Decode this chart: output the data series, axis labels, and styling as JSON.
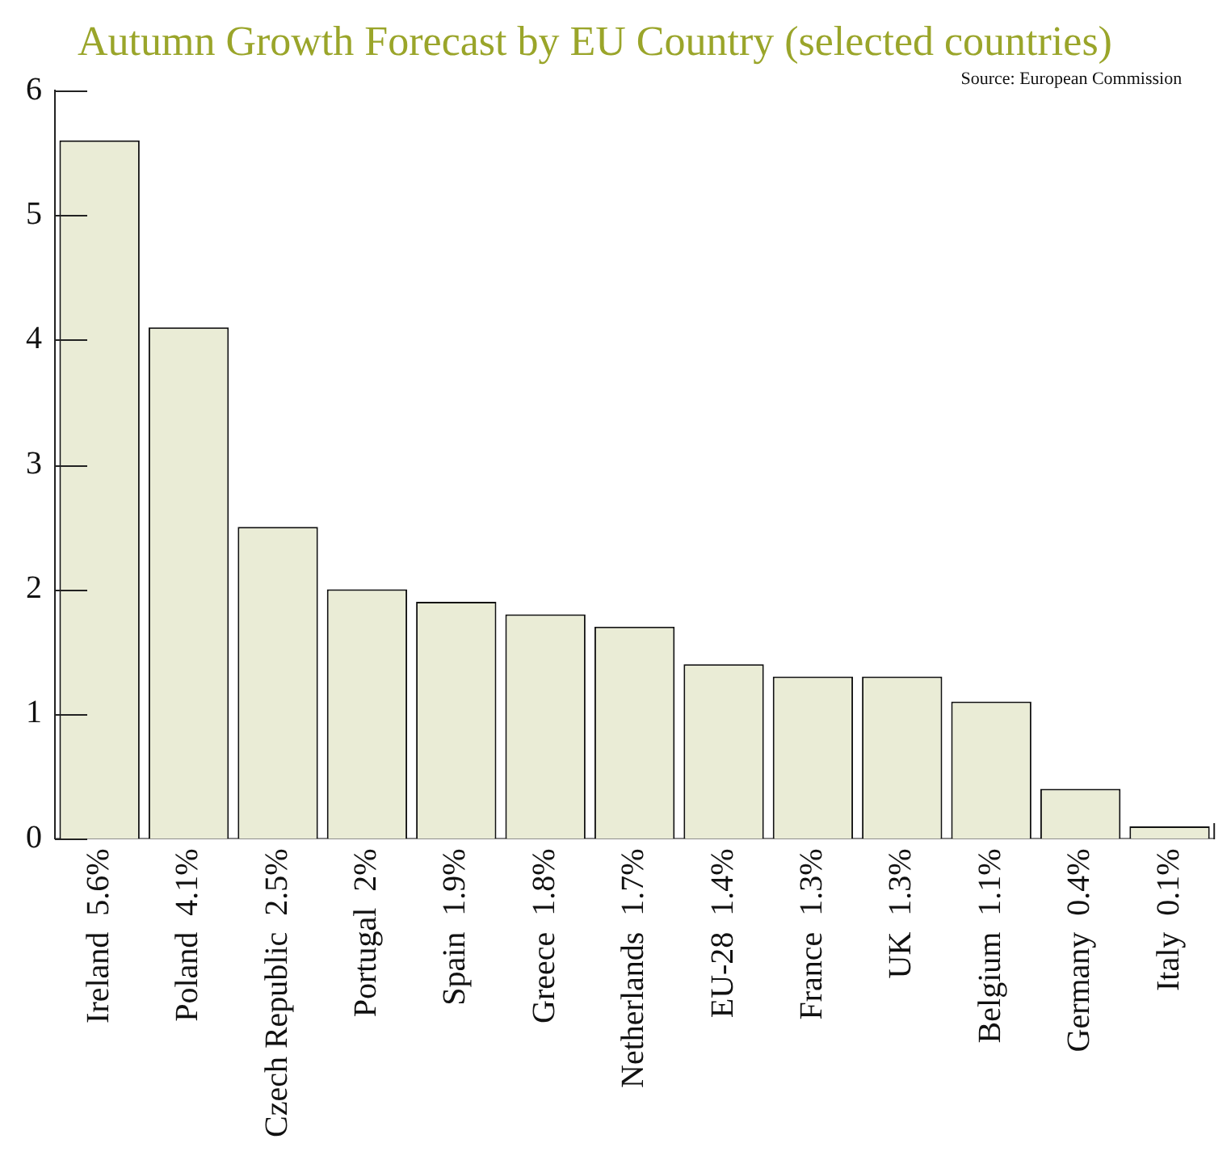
{
  "chart_data": {
    "type": "bar",
    "title": "Autumn Growth Forecast by EU Country (selected countries)",
    "annotations": [
      "Source: European Commission"
    ],
    "categories": [
      "Ireland  5.6%",
      "Poland  4.1%",
      "Czech Republic  2.5%",
      "Portugal  2%",
      "Spain  1.9%",
      "Greece  1.8%",
      "Netherlands  1.7%",
      "EU-28  1.4%",
      "France  1.3%",
      "UK  1.3%",
      "Belgium  1.1%",
      "Germany  0.4%",
      "Italy  0.1%"
    ],
    "values": [
      5.6,
      4.1,
      2.5,
      2,
      1.9,
      1.8,
      1.7,
      1.4,
      1.3,
      1.3,
      1.1,
      0.4,
      0.1
    ],
    "color": "#eaecd6",
    "ylim": [
      0,
      6
    ],
    "yticks": [
      0,
      1,
      2,
      3,
      4,
      5,
      6
    ],
    "grid": false,
    "legend": false
  }
}
